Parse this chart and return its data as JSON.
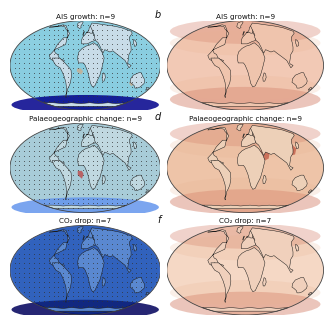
{
  "panels": [
    {
      "label": "",
      "title": "AIS growth: n=9",
      "col": 0,
      "row": 0,
      "ocean_color": "#89CDE0",
      "land_color": "#C8DCE8",
      "deep_color": "#00008B",
      "pattern": "blue_cool",
      "stipple": true
    },
    {
      "label": "b",
      "title": "AIS growth: n=9",
      "col": 1,
      "row": 0,
      "ocean_color": "#F2C9B5",
      "land_color": "#EFC4AD",
      "deep_color": "#C0392B",
      "pattern": "warm",
      "stipple": false
    },
    {
      "label": "",
      "title": "Palaeogeographic change: n=9",
      "col": 0,
      "row": 1,
      "ocean_color": "#A8CCD8",
      "land_color": "#C0D8E0",
      "deep_color": "#6495ED",
      "pattern": "blue_mixed",
      "stipple": true
    },
    {
      "label": "d",
      "title": "Palaeogeographic change: n=9",
      "col": 1,
      "row": 1,
      "ocean_color": "#EEC4A8",
      "land_color": "#EDD0B8",
      "deep_color": "#C0392B",
      "pattern": "warm_strong",
      "stipple": false
    },
    {
      "label": "",
      "title": "CO₂ drop: n=7",
      "col": 0,
      "row": 2,
      "ocean_color": "#3A6AC8",
      "land_color": "#5A88D0",
      "deep_color": "#00005A",
      "pattern": "blue_strong",
      "stipple": true
    },
    {
      "label": "f",
      "title": "CO₂ drop: n=7",
      "col": 1,
      "row": 2,
      "ocean_color": "#F5D8C5",
      "land_color": "#F0D0BC",
      "deep_color": "#D08060",
      "pattern": "warm_mild",
      "stipple": false
    }
  ],
  "figure_bg": "#ffffff",
  "title_fontsize": 5.2,
  "label_fontsize": 7.0
}
